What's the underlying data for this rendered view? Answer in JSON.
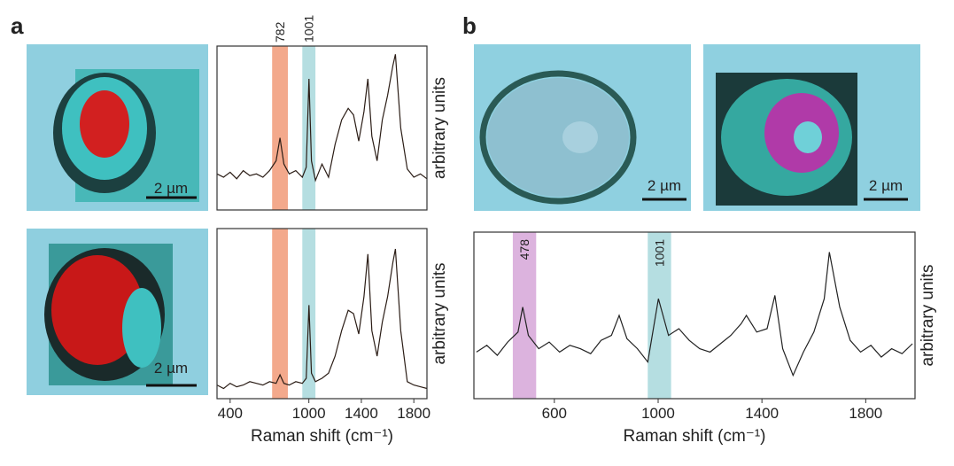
{
  "panels": [
    "a",
    "b"
  ],
  "images": [
    {
      "scale_label": "2 µm"
    },
    {
      "scale_label": "2 µm"
    },
    {
      "scale_label": "2 µm"
    },
    {
      "scale_label": "2 µm"
    }
  ],
  "chart_data": [
    {
      "type": "line",
      "ylabel": "arbitrary units",
      "x": [
        300,
        350,
        400,
        450,
        500,
        550,
        600,
        650,
        700,
        750,
        780,
        810,
        850,
        900,
        950,
        980,
        1001,
        1020,
        1050,
        1100,
        1150,
        1200,
        1250,
        1300,
        1340,
        1380,
        1420,
        1450,
        1480,
        1520,
        1560,
        1600,
        1640,
        1660,
        1700,
        1750,
        1800,
        1850,
        1900
      ],
      "series": [
        {
          "color": "#2b1d16",
          "values": [
            22,
            20,
            23,
            19,
            24,
            21,
            22,
            20,
            24,
            30,
            44,
            28,
            22,
            24,
            20,
            26,
            80,
            30,
            18,
            28,
            20,
            40,
            55,
            62,
            58,
            42,
            60,
            80,
            45,
            30,
            55,
            70,
            88,
            95,
            50,
            25,
            20,
            22,
            19
          ]
        }
      ],
      "bands": [
        {
          "label": "782",
          "range": [
            720,
            840
          ],
          "color": "#f19a78"
        },
        {
          "label": "1001",
          "range": [
            950,
            1050
          ],
          "color": "#a8d8dc"
        }
      ],
      "xlim": [
        300,
        1900
      ],
      "ylim": [
        0,
        100
      ]
    },
    {
      "type": "line",
      "ylabel": "arbitrary units",
      "xlabel": "Raman shift (cm⁻¹)",
      "x": [
        300,
        350,
        400,
        450,
        500,
        550,
        600,
        650,
        700,
        750,
        780,
        810,
        850,
        900,
        950,
        980,
        1001,
        1020,
        1050,
        1100,
        1150,
        1200,
        1250,
        1300,
        1340,
        1380,
        1420,
        1450,
        1480,
        1520,
        1560,
        1600,
        1640,
        1660,
        1700,
        1750,
        1800,
        1850,
        1900
      ],
      "series": [
        {
          "color": "#2b1d16",
          "values": [
            8,
            6,
            9,
            7,
            8,
            10,
            9,
            8,
            10,
            9,
            14,
            9,
            8,
            10,
            9,
            12,
            55,
            15,
            10,
            12,
            15,
            25,
            40,
            52,
            50,
            38,
            60,
            85,
            40,
            25,
            45,
            60,
            80,
            88,
            40,
            10,
            8,
            7,
            6
          ]
        }
      ],
      "bands": [
        {
          "range": [
            720,
            840
          ],
          "color": "#f19a78"
        },
        {
          "range": [
            950,
            1050
          ],
          "color": "#a8d8dc"
        }
      ],
      "xlim": [
        300,
        1900
      ],
      "xticks": [
        400,
        1000,
        1400,
        1800
      ],
      "ylim": [
        0,
        100
      ]
    },
    {
      "type": "line",
      "ylabel": "arbitrary units",
      "xlabel": "Raman shift (cm⁻¹)",
      "x": [
        300,
        340,
        380,
        420,
        460,
        478,
        500,
        540,
        580,
        620,
        660,
        700,
        740,
        780,
        820,
        850,
        880,
        920,
        960,
        1001,
        1040,
        1080,
        1120,
        1160,
        1200,
        1240,
        1280,
        1320,
        1340,
        1380,
        1420,
        1450,
        1480,
        1520,
        1560,
        1600,
        1640,
        1660,
        1700,
        1740,
        1780,
        1820,
        1860,
        1900,
        1940,
        1980
      ],
      "series": [
        {
          "color": "#222222",
          "values": [
            28,
            32,
            26,
            34,
            40,
            55,
            38,
            30,
            34,
            28,
            32,
            30,
            27,
            35,
            38,
            50,
            36,
            30,
            22,
            60,
            38,
            42,
            35,
            30,
            28,
            33,
            38,
            45,
            50,
            40,
            42,
            62,
            30,
            14,
            28,
            40,
            60,
            88,
            55,
            35,
            28,
            32,
            25,
            30,
            27,
            33
          ]
        }
      ],
      "bands": [
        {
          "label": "478",
          "range": [
            440,
            530
          ],
          "color": "#d6a6d8"
        },
        {
          "label": "1001",
          "range": [
            960,
            1050
          ],
          "color": "#a8d8dc"
        }
      ],
      "xlim": [
        290,
        1990
      ],
      "xticks": [
        600,
        1000,
        1400,
        1800
      ],
      "ylim": [
        0,
        100
      ]
    }
  ]
}
